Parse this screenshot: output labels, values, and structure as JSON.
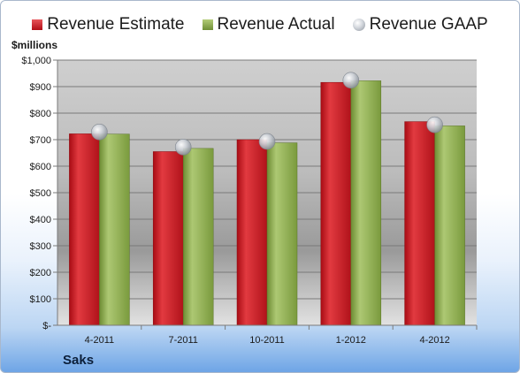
{
  "legend": {
    "estimate": "Revenue Estimate",
    "actual": "Revenue Actual",
    "gaap": "Revenue GAAP"
  },
  "unit_label": "$millions",
  "company": "Saks",
  "colors": {
    "estimate": "#c8161e",
    "actual": "#8caa4e",
    "gaap": "#c0c4ca"
  },
  "chart_data": {
    "type": "bar",
    "categories": [
      "4-2011",
      "7-2011",
      "10-2011",
      "1-2012",
      "4-2012"
    ],
    "series": [
      {
        "name": "Revenue Estimate",
        "values": [
          722,
          655,
          700,
          916,
          768
        ]
      },
      {
        "name": "Revenue Actual",
        "values": [
          721,
          667,
          688,
          922,
          752
        ]
      },
      {
        "name": "Revenue GAAP",
        "values": [
          729,
          672,
          693,
          924,
          756
        ]
      }
    ],
    "y_tick_labels": [
      "$-",
      "$100",
      "$200",
      "$300",
      "$400",
      "$500",
      "$600",
      "$700",
      "$800",
      "$900",
      "$1,000"
    ],
    "ylim": [
      0,
      1000
    ],
    "ylabel": "$millions",
    "grid": true,
    "legend_position": "top"
  }
}
